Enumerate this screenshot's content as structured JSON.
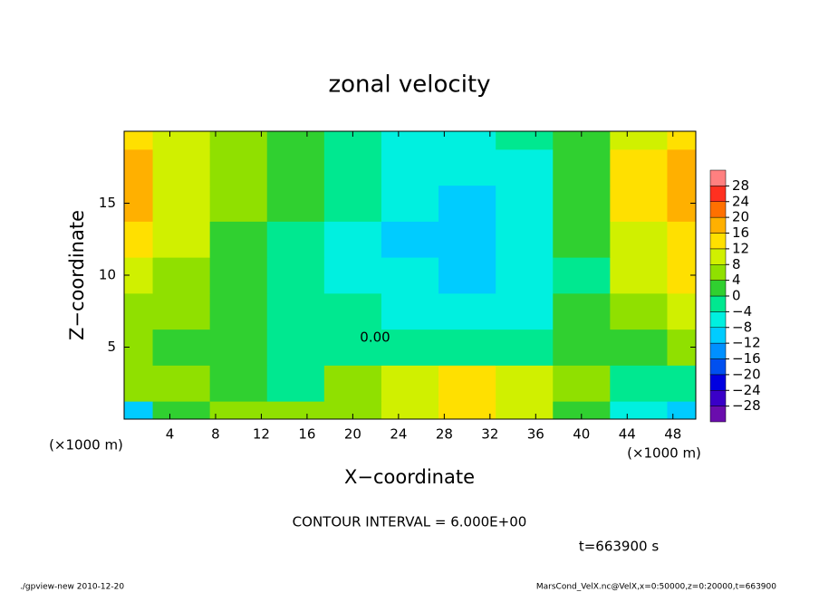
{
  "chart_data": {
    "type": "contour",
    "title": "zonal velocity",
    "x_label": "X−coordinate",
    "y_label": "Z−coordinate",
    "x_unit": "(×1000 m)",
    "y_unit": "(×1000 m)",
    "xlim": [
      0,
      50
    ],
    "ylim": [
      0,
      20
    ],
    "xticks": [
      4,
      8,
      12,
      16,
      20,
      24,
      28,
      32,
      36,
      40,
      44,
      48
    ],
    "yticks": [
      5,
      10,
      15
    ],
    "x": [
      0,
      5,
      10,
      15,
      20,
      25,
      30,
      35,
      40,
      45,
      50
    ],
    "y": [
      0,
      2.5,
      5,
      7.5,
      10,
      12.5,
      15,
      17.5,
      20
    ],
    "z": [
      [
        -12,
        0,
        4,
        4,
        6,
        8,
        14,
        8,
        2,
        -8,
        -10
      ],
      [
        4,
        6,
        2,
        -2,
        6,
        10,
        12,
        10,
        4,
        -4,
        -2
      ],
      [
        4,
        2,
        0,
        -2,
        -2,
        -2,
        -4,
        -2,
        0,
        2,
        4
      ],
      [
        6,
        4,
        2,
        -2,
        -4,
        -6,
        -8,
        -6,
        0,
        6,
        10
      ],
      [
        10,
        6,
        2,
        -2,
        -6,
        -8,
        -10,
        -8,
        -2,
        8,
        14
      ],
      [
        12,
        8,
        2,
        -2,
        -6,
        -10,
        -12,
        -8,
        0,
        10,
        14
      ],
      [
        16,
        8,
        4,
        0,
        -4,
        -8,
        -10,
        -6,
        2,
        12,
        16
      ],
      [
        16,
        10,
        4,
        0,
        -2,
        -6,
        -8,
        -6,
        2,
        12,
        16
      ],
      [
        14,
        10,
        4,
        0,
        -2,
        -6,
        -6,
        -4,
        2,
        10,
        14
      ]
    ],
    "colorbar": {
      "levels": [
        -32,
        -28,
        -24,
        -20,
        -16,
        -12,
        -8,
        -4,
        0,
        4,
        8,
        12,
        16,
        20,
        24,
        28,
        32
      ],
      "colors": [
        "#6a0dad",
        "#3a00c8",
        "#0000e0",
        "#0050f0",
        "#0090ff",
        "#00ccff",
        "#00f0e0",
        "#00e890",
        "#30d030",
        "#90e000",
        "#d0f000",
        "#ffe000",
        "#ffb000",
        "#ff7000",
        "#ff3020",
        "#ff8080"
      ],
      "ticks": [
        28,
        24,
        20,
        16,
        12,
        8,
        4,
        0,
        {
          "value": -4,
          "label": "−4"
        },
        {
          "value": -8,
          "label": "−8"
        },
        {
          "value": -12,
          "label": "−12"
        },
        {
          "value": -16,
          "label": "−16"
        },
        {
          "value": -20,
          "label": "−20"
        },
        {
          "value": -24,
          "label": "−24"
        },
        {
          "value": -28,
          "label": "−28"
        }
      ]
    },
    "contour_label": "0.00",
    "contour_interval": "CONTOUR INTERVAL = 6.000E+00",
    "time_label": "t=663900 s",
    "footer_left": "./gpview-new  2010-12-20",
    "footer_right": "MarsCond_VelX.nc@VelX,x=0:50000,z=0:20000,t=663900"
  }
}
